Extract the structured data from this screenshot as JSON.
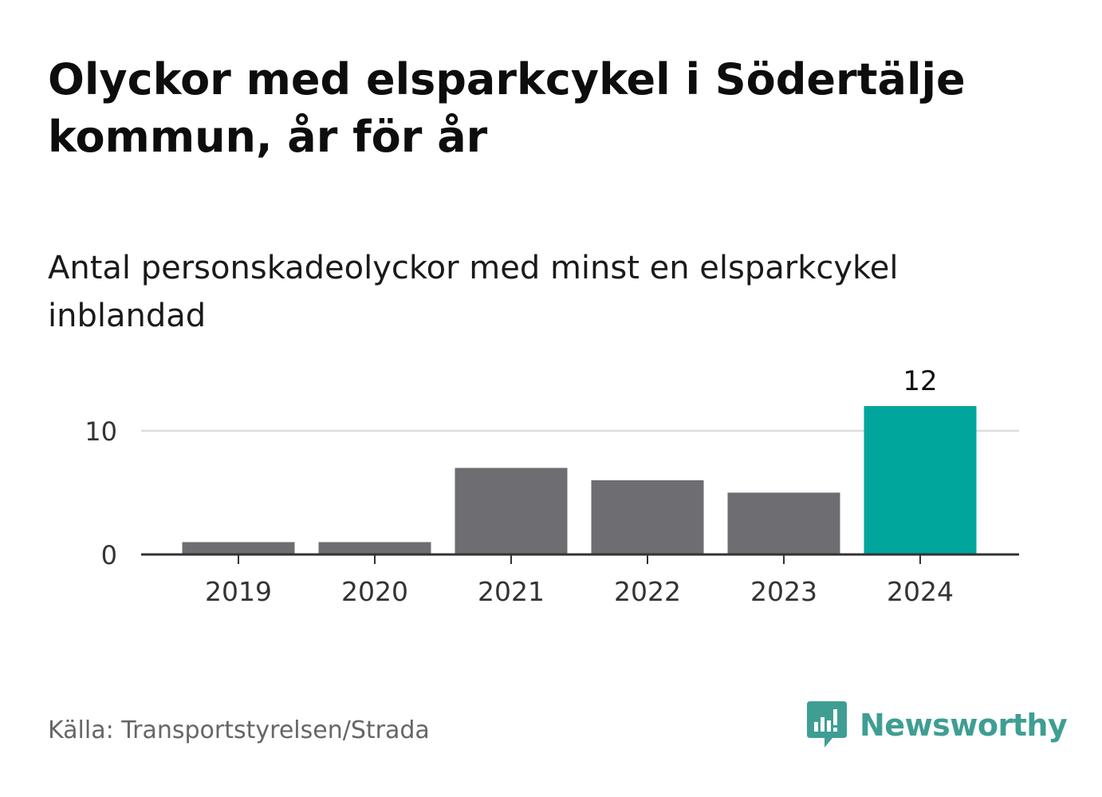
{
  "header": {
    "title": "Olyckor med elsparkcykel i Södertälje kommun, år för år",
    "subtitle": "Antal personskadeolyckor med minst en elsparkcykel inblandad"
  },
  "footer": {
    "source": "Källa: Transportstyrelsen/Strada",
    "logo_text": "Newsworthy"
  },
  "colors": {
    "bar_default": "#6e6d72",
    "bar_highlight": "#00a69c",
    "gridline": "#dddddd",
    "axis": "#333333",
    "logo": "#3f9e93"
  },
  "chart_data": {
    "type": "bar",
    "title": "Olyckor med elsparkcykel i Södertälje kommun, år för år",
    "subtitle": "Antal personskadeolyckor med minst en elsparkcykel inblandad",
    "categories": [
      "2019",
      "2020",
      "2021",
      "2022",
      "2023",
      "2024"
    ],
    "values": [
      1,
      1,
      7,
      6,
      5,
      12
    ],
    "highlight_index": 5,
    "data_labels": {
      "5": "12"
    },
    "ylim": [
      0,
      12
    ],
    "yticks": [
      0,
      10
    ],
    "gridlines": true,
    "xlabel": "",
    "ylabel": ""
  }
}
